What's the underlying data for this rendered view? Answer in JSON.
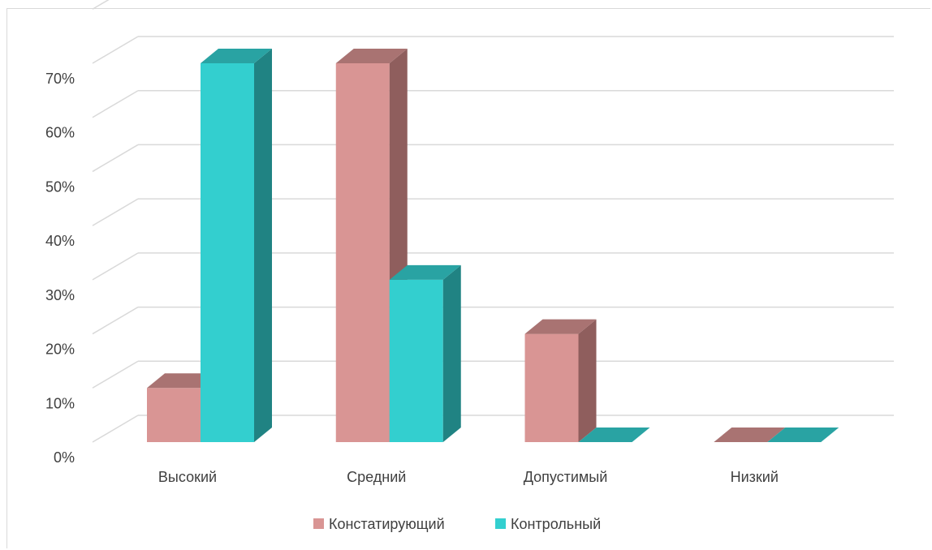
{
  "chart_data": {
    "type": "bar",
    "title": "",
    "xlabel": "",
    "ylabel": "",
    "categories": [
      "Высокий",
      "Средний",
      "Допустимый",
      "Низкий"
    ],
    "series": [
      {
        "name": "Констатирующий",
        "values": [
          10,
          70,
          20,
          0
        ],
        "color": "#D99594",
        "side_color": "#8F5E5D",
        "top_color": "#A97372"
      },
      {
        "name": "Контрольный",
        "values": [
          70,
          30,
          0,
          0
        ],
        "color": "#33CFCF",
        "side_color": "#208383",
        "top_color": "#29A3A3"
      }
    ],
    "ylim": [
      0,
      70
    ],
    "y_ticks": [
      "0%",
      "10%",
      "20%",
      "30%",
      "40%",
      "50%",
      "60%",
      "70%"
    ],
    "grid": true,
    "legend_position": "bottom",
    "chart_style": "3d-clustered-column"
  }
}
